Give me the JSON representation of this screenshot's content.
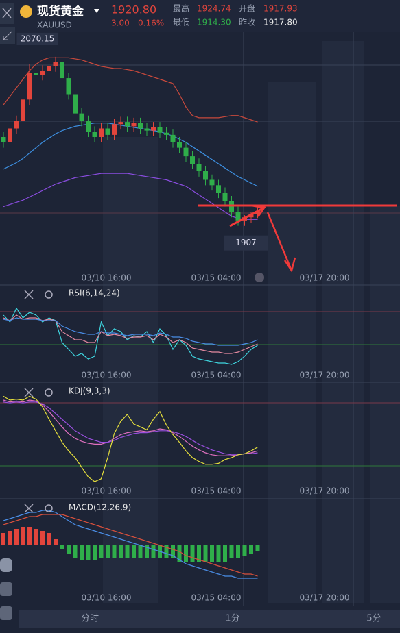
{
  "header": {
    "name": "现货黄金",
    "symbol": "XAUUSD",
    "price": "1920.80",
    "change": "3.00",
    "change_pct": "0.16%",
    "high_label": "最高",
    "high": "1924.74",
    "open_label": "开盘",
    "open": "1917.93",
    "low_label": "最低",
    "low": "1914.30",
    "prev_label": "昨收",
    "prev": "1917.80"
  },
  "x_labels": [
    "03/10 16:00",
    "03/15 04:00",
    "03/17 20:00"
  ],
  "tabs": [
    "分时",
    "1分",
    "5分"
  ],
  "chart_data": [
    {
      "type": "candlestick",
      "ylim": [
        1862,
        2118
      ],
      "open": [
        1990,
        1985,
        1998,
        2005,
        2025,
        2050,
        2048,
        2052,
        2056,
        2060,
        2045,
        2030,
        2012,
        2005,
        1995,
        1990,
        1998,
        1992,
        2002,
        2004,
        2000,
        2003,
        1998,
        1996,
        1999,
        1994,
        1992,
        1985,
        1980,
        1972,
        1965,
        1958,
        1950,
        1945,
        1938,
        1930,
        1920,
        1912,
        1915,
        1918
      ],
      "high": [
        1995,
        2003,
        2010,
        2030,
        2058,
        2070.15,
        2057,
        2061,
        2065,
        2065,
        2050,
        2035,
        2017,
        2010,
        2000,
        2003,
        2003,
        2007,
        2009,
        2009,
        2008,
        2008,
        2003,
        2004,
        2004,
        1999,
        1997,
        1990,
        1985,
        1977,
        1970,
        1963,
        1955,
        1950,
        1943,
        1935,
        1925,
        1917,
        1920,
        1924.74
      ],
      "low": [
        1980,
        1980,
        1993,
        2000,
        2020,
        2043,
        2043,
        2047,
        2051,
        2040,
        2025,
        2007,
        2000,
        1990,
        1985,
        1985,
        1987,
        1987,
        1997,
        1995,
        1995,
        1993,
        1991,
        1991,
        1989,
        1987,
        1980,
        1975,
        1967,
        1960,
        1953,
        1945,
        1940,
        1933,
        1925,
        1915,
        1907.07,
        1907,
        1910,
        1914.3
      ],
      "close": [
        1985,
        1998,
        2005,
        2025,
        2050,
        2048,
        2052,
        2056,
        2060,
        2045,
        2030,
        2012,
        2005,
        1995,
        1990,
        1998,
        1992,
        2002,
        2004,
        2000,
        2003,
        1998,
        1996,
        1999,
        1994,
        1992,
        1985,
        1980,
        1972,
        1965,
        1958,
        1950,
        1945,
        1938,
        1930,
        1920,
        1912,
        1915,
        1918,
        1920.8
      ],
      "up_color": "#e2453c",
      "down_color": "#2fae4a",
      "series": [
        {
          "color": "#c8493c",
          "values": [
            2020,
            2028,
            2036,
            2044,
            2052,
            2058,
            2062,
            2064,
            2064,
            2064,
            2064,
            2063,
            2062,
            2060,
            2058,
            2056,
            2055,
            2054,
            2054,
            2053,
            2052,
            2050,
            2048,
            2046,
            2044,
            2042,
            2040,
            2030,
            2018,
            2010,
            2008,
            2008,
            2008,
            2008,
            2009,
            2010,
            2010,
            2008,
            2006,
            2004
          ]
        },
        {
          "color": "#3d8fe0",
          "values": [
            1960,
            1963,
            1966,
            1970,
            1975,
            1980,
            1985,
            1989,
            1993,
            1996,
            1998,
            2000,
            2001,
            2002,
            2003,
            2003,
            2003,
            2002,
            2001,
            2000,
            1999,
            1998,
            1997,
            1996,
            1995,
            1993,
            1991,
            1988,
            1985,
            1981,
            1977,
            1973,
            1969,
            1965,
            1961,
            1957,
            1953,
            1950,
            1947,
            1944
          ]
        },
        {
          "color": "#8a4de0",
          "values": [
            1925,
            1927,
            1929,
            1931,
            1934,
            1937,
            1940,
            1943,
            1946,
            1948,
            1950,
            1952,
            1953,
            1954,
            1955,
            1956,
            1956,
            1956,
            1956,
            1956,
            1955,
            1954,
            1953,
            1952,
            1951,
            1950,
            1948,
            1946,
            1944,
            1940,
            1936,
            1932,
            1928,
            1924,
            1920,
            1916,
            1914,
            1913,
            1913,
            1913
          ]
        }
      ]
    },
    {
      "type": "line",
      "title": "RSI(6,14,24)",
      "ylim": [
        20,
        70
      ],
      "series": [
        {
          "color": "#3fd6e0",
          "values": [
            60,
            55,
            65,
            58,
            62,
            60,
            55,
            58,
            56,
            40,
            35,
            30,
            32,
            28,
            30,
            55,
            45,
            50,
            48,
            42,
            45,
            44,
            48,
            40,
            50,
            45,
            35,
            42,
            38,
            30,
            28,
            27,
            26,
            25,
            25,
            24,
            26,
            30,
            35,
            38
          ]
        },
        {
          "color": "#e68aa0",
          "values": [
            58,
            56,
            60,
            57,
            58,
            58,
            56,
            57,
            56,
            48,
            45,
            42,
            42,
            40,
            40,
            48,
            45,
            46,
            45,
            43,
            44,
            44,
            45,
            42,
            46,
            44,
            40,
            42,
            40,
            36,
            35,
            34,
            33,
            33,
            32,
            32,
            33,
            35,
            37,
            39
          ]
        },
        {
          "color": "#4a8de6",
          "values": [
            57,
            56,
            58,
            57,
            57,
            57,
            56,
            56,
            56,
            52,
            50,
            48,
            47,
            46,
            46,
            48,
            47,
            47,
            46,
            45,
            46,
            46,
            46,
            45,
            47,
            46,
            44,
            44,
            43,
            41,
            40,
            39,
            39,
            38,
            38,
            38,
            38,
            39,
            40,
            42
          ]
        }
      ]
    },
    {
      "type": "line",
      "title": "KDJ(9,3,3)",
      "ylim": [
        0,
        100
      ],
      "series": [
        {
          "color": "#e070c0",
          "values": [
            90,
            88,
            89,
            88,
            90,
            89,
            85,
            78,
            70,
            62,
            55,
            50,
            47,
            45,
            44,
            44,
            46,
            50,
            54,
            56,
            57,
            58,
            57,
            58,
            60,
            59,
            56,
            52,
            47,
            42,
            38,
            35,
            33,
            32,
            32,
            32,
            33,
            34,
            35,
            37
          ]
        },
        {
          "color": "#9a50e0",
          "values": [
            88,
            87,
            88,
            87,
            88,
            88,
            86,
            82,
            76,
            70,
            64,
            58,
            54,
            50,
            48,
            46,
            46,
            48,
            51,
            53,
            55,
            56,
            56,
            57,
            58,
            58,
            57,
            55,
            52,
            48,
            44,
            41,
            38,
            36,
            34,
            33,
            33,
            34,
            34,
            35
          ]
        },
        {
          "color": "#e6df3c",
          "values": [
            94,
            90,
            91,
            90,
            94,
            91,
            83,
            70,
            58,
            46,
            37,
            30,
            20,
            10,
            5,
            8,
            30,
            55,
            68,
            75,
            65,
            62,
            59,
            70,
            78,
            64,
            54,
            46,
            37,
            30,
            26,
            23,
            23,
            24,
            28,
            30,
            33,
            34,
            37,
            41
          ]
        }
      ]
    },
    {
      "type": "macd",
      "title": "MACD(12,26,9)",
      "ylim": [
        -28,
        22
      ],
      "up_color": "#e2453c",
      "down_color": "#2fae4a",
      "bars": [
        6,
        7,
        8,
        9,
        9,
        8,
        7,
        6,
        3,
        -2,
        -4,
        -6,
        -7,
        -7,
        -7,
        -6,
        -6,
        -6,
        -6,
        -6,
        -6,
        -6,
        -6,
        -6,
        -6,
        -6,
        -6,
        -8,
        -8,
        -8,
        -8,
        -8,
        -8,
        -8,
        -8,
        -6,
        -6,
        -5,
        -4,
        -3
      ],
      "series": [
        {
          "color": "#4a8de6",
          "values": [
            12,
            13,
            14,
            15,
            16,
            16,
            17,
            17,
            16,
            14,
            12,
            10,
            9,
            8,
            7,
            6,
            5,
            4,
            3,
            2,
            1,
            0,
            -1,
            -2,
            -3,
            -4,
            -5,
            -7,
            -9,
            -10,
            -11,
            -12,
            -13,
            -14,
            -15,
            -15,
            -16,
            -16,
            -16,
            -16
          ]
        },
        {
          "color": "#d8503c",
          "values": [
            10,
            11,
            12,
            13,
            14,
            14,
            15,
            15,
            15,
            15,
            14,
            13,
            12,
            11,
            10,
            9,
            8,
            7,
            6,
            5,
            4,
            3,
            2,
            1,
            0,
            -1,
            -2,
            -3,
            -5,
            -6,
            -7,
            -8,
            -9,
            -10,
            -11,
            -12,
            -13,
            -14,
            -14,
            -15
          ]
        }
      ]
    }
  ]
}
